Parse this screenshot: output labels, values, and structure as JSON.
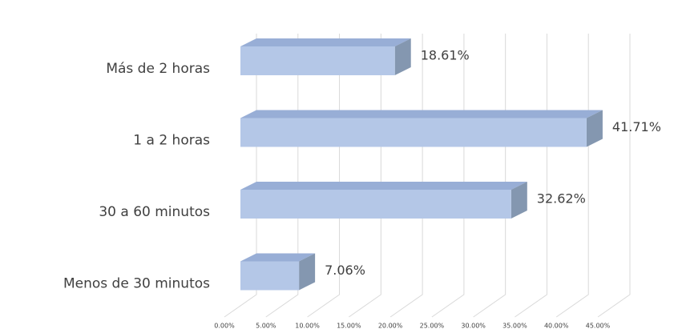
{
  "chart_data": {
    "type": "bar3d_horizontal",
    "categories": [
      "Más de 2 horas",
      "1 a 2 horas",
      "30 a 60 minutos",
      "Menos de 30 minutos"
    ],
    "values": [
      18.61,
      41.71,
      32.62,
      7.06
    ],
    "value_labels": [
      "18.61%",
      "41.71%",
      "32.62%",
      "7.06%"
    ],
    "color": "#b4c7e7",
    "xlim": [
      0,
      45
    ],
    "xticks": [
      {
        "value": 0,
        "label": "0.00%"
      },
      {
        "value": 5,
        "label": "5.00%"
      },
      {
        "value": 10,
        "label": "10.00%"
      },
      {
        "value": 15,
        "label": "15.00%"
      },
      {
        "value": 20,
        "label": "20.00%"
      },
      {
        "value": 25,
        "label": "25.00%"
      },
      {
        "value": 30,
        "label": "30.00%"
      },
      {
        "value": 35,
        "label": "35.00%"
      },
      {
        "value": 40,
        "label": "40.00%"
      },
      {
        "value": 45,
        "label": "45.00%"
      }
    ],
    "grid": true
  }
}
